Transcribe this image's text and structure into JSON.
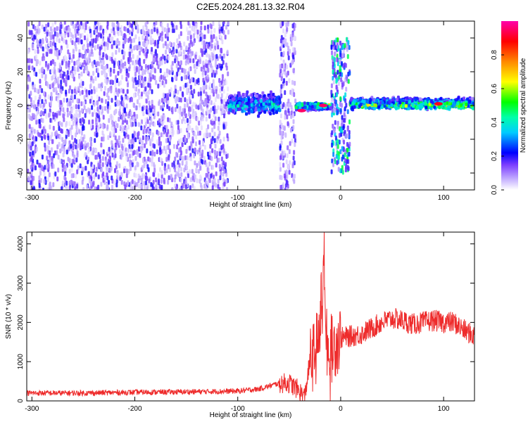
{
  "title": "C2E5.2024.281.13.32.R04",
  "chart_data": [
    {
      "type": "heatmap",
      "xlabel": "Height of straight line (km)",
      "ylabel": "Frequency (Hz)",
      "xlim": [
        -305,
        130
      ],
      "ylim": [
        -50,
        50
      ],
      "xticks": [
        -300,
        -200,
        -100,
        0,
        100
      ],
      "yticks": [
        -40,
        -20,
        0,
        20,
        40
      ],
      "colorbar": {
        "label": "Normalized spectral amplitude",
        "range": [
          0.0,
          1.0
        ],
        "ticks": [
          0.0,
          0.2,
          0.4,
          0.6,
          0.8
        ]
      },
      "regions": [
        {
          "x": [
            -305,
            -110
          ],
          "freq_spread": 50,
          "amplitude": 0.1
        },
        {
          "x": [
            -110,
            -60
          ],
          "freq_spread": 6,
          "amplitude": 0.35
        },
        {
          "x": [
            -60,
            -45
          ],
          "freq_spread": 50,
          "amplitude": 0.1
        },
        {
          "x": [
            -45,
            -10
          ],
          "freq_spread": 2,
          "amplitude": 0.55
        },
        {
          "x": [
            -10,
            8
          ],
          "freq_spread": 40,
          "amplitude": 0.25
        },
        {
          "x": [
            8,
            130
          ],
          "freq_spread": 3,
          "amplitude": 0.5
        }
      ],
      "peak_points": [
        {
          "x": -38,
          "f": -3,
          "amplitude": 0.95
        },
        {
          "x": -17,
          "f": 0,
          "amplitude": 0.95
        },
        {
          "x": 95,
          "f": 1,
          "amplitude": 0.9
        }
      ]
    },
    {
      "type": "line",
      "xlabel": "Height of straight line (km)",
      "ylabel": "SNR (10 * v/v)",
      "xlim": [
        -305,
        130
      ],
      "ylim": [
        0,
        4300
      ],
      "xticks": [
        -300,
        -200,
        -100,
        0,
        100
      ],
      "yticks": [
        0,
        1000,
        2000,
        3000,
        4000
      ],
      "series": [
        {
          "color": "#ee2b2b",
          "x": [
            -305,
            -250,
            -200,
            -150,
            -100,
            -80,
            -60,
            -50,
            -42,
            -35,
            -30,
            -25,
            -22,
            -20,
            -18,
            -16,
            -15,
            -12,
            -8,
            -5,
            0,
            10,
            20,
            30,
            40,
            50,
            60,
            70,
            80,
            90,
            100,
            110,
            120,
            130
          ],
          "y": [
            200,
            200,
            220,
            230,
            250,
            300,
            450,
            450,
            300,
            100,
            1000,
            1200,
            1600,
            1900,
            3000,
            4300,
            1500,
            1500,
            1300,
            1500,
            1600,
            1650,
            1700,
            1850,
            2000,
            2100,
            2050,
            1950,
            2000,
            2050,
            2000,
            2000,
            1800,
            1650
          ]
        }
      ]
    }
  ]
}
